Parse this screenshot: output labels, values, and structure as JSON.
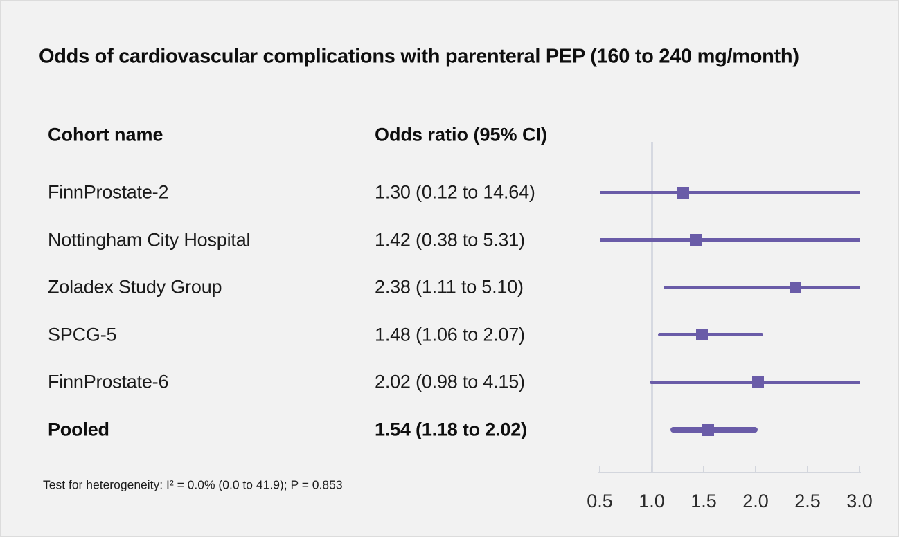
{
  "title": "Odds of cardiovascular complications with parenteral PEP (160 to 240 mg/month)",
  "table": {
    "cohort_header": "Cohort name",
    "or_header": "Odds ratio (95% CI)"
  },
  "footnote": "Test for heterogeneity: I² = 0.0% (0.0 to 41.9); P = 0.853",
  "colors": {
    "background": "#f2f2f2",
    "plot_purple": "#6a5ca8",
    "reference_line": "#d6d9e1",
    "axis": "#d3d6dd",
    "text": "#141414"
  },
  "chart_data": {
    "type": "forest",
    "title": "Odds of cardiovascular complications with parenteral PEP (160 to 240 mg/month)",
    "xlabel": "Odds ratio",
    "xlim": [
      0.5,
      3.0
    ],
    "x_ticks": [
      "0.5",
      "1.0",
      "1.5",
      "2.0",
      "2.5",
      "3.0"
    ],
    "reference_value": 1.0,
    "grid": false,
    "legend": "none",
    "rows": [
      {
        "label": "FinnProstate-2",
        "display": "1.30 (0.12 to 14.64)",
        "or": 1.3,
        "ci_low": 0.12,
        "ci_high": 14.64,
        "pooled": false
      },
      {
        "label": "Nottingham City Hospital",
        "display": "1.42 (0.38 to 5.31)",
        "or": 1.42,
        "ci_low": 0.38,
        "ci_high": 5.31,
        "pooled": false
      },
      {
        "label": "Zoladex Study Group",
        "display": "2.38 (1.11 to 5.10)",
        "or": 2.38,
        "ci_low": 1.11,
        "ci_high": 5.1,
        "pooled": false
      },
      {
        "label": "SPCG-5",
        "display": "1.48 (1.06 to 2.07)",
        "or": 1.48,
        "ci_low": 1.06,
        "ci_high": 2.07,
        "pooled": false
      },
      {
        "label": "FinnProstate-6",
        "display": "2.02 (0.98 to 4.15)",
        "or": 2.02,
        "ci_low": 0.98,
        "ci_high": 4.15,
        "pooled": false
      },
      {
        "label": "Pooled",
        "display": "1.54 (1.18 to 2.02)",
        "or": 1.54,
        "ci_low": 1.18,
        "ci_high": 2.02,
        "pooled": true
      }
    ]
  }
}
